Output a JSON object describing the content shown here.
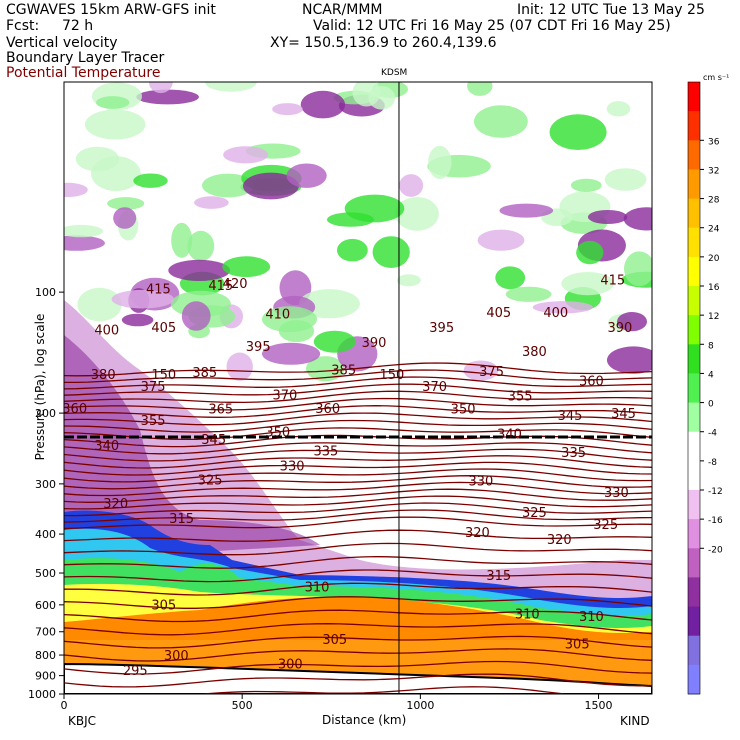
{
  "header": {
    "model": "CGWAVES 15km ARW-GFS init",
    "center": "NCAR/MMM",
    "init": "Init: 12 UTC Tue 13 May 25",
    "fcst_label": "Fcst:",
    "fcst_value": "72 h",
    "valid": "Valid: 12 UTC Fri 16 May 25 (07 CDT Fri 16 May 25)",
    "field1": "Vertical velocity",
    "field2": "Boundary Layer Tracer",
    "field3": "Potential Temperature",
    "xy": "XY= 150.5,136.9 to 260.4,139.6",
    "station_top": "KDSM",
    "station_left": "KBJC",
    "station_right": "KIND"
  },
  "chart_data": {
    "type": "heatmap",
    "xlabel": "Distance (km)",
    "ylabel": "Pressure (hPa), log scale",
    "x_ticks": [
      0,
      500,
      1000,
      1500
    ],
    "xlim": [
      0,
      1650
    ],
    "y_ticks": [
      100,
      200,
      300,
      400,
      500,
      600,
      700,
      800,
      900,
      1000
    ],
    "ylim": [
      1000,
      30
    ],
    "y_scale": "log",
    "station_marker_x": 940,
    "colorbar": {
      "units": "cm s⁻¹",
      "ticks": [
        36,
        32,
        28,
        24,
        20,
        16,
        12,
        8,
        4,
        0,
        -4,
        -8,
        -12,
        -16,
        -20
      ],
      "colors": [
        "#ff0000",
        "#ff3000",
        "#ff6a00",
        "#ff9a00",
        "#ffc000",
        "#ffe000",
        "#ffff00",
        "#c8ff00",
        "#80ff00",
        "#30e020",
        "#50f050",
        "#a0ffa0",
        "#ffffff",
        "#ffffff",
        "#f0c0f0",
        "#e090e0",
        "#c060c0",
        "#9030a0",
        "#7020a0",
        "#8070e0",
        "#8080ff"
      ]
    },
    "theta_labels": [
      {
        "x": 265,
        "p": 98,
        "t": "415"
      },
      {
        "x": 440,
        "p": 96,
        "t": "415"
      },
      {
        "x": 480,
        "p": 95,
        "t": "420"
      },
      {
        "x": 1540,
        "p": 93,
        "t": "415"
      },
      {
        "x": 120,
        "p": 124,
        "t": "400"
      },
      {
        "x": 280,
        "p": 122,
        "t": "405"
      },
      {
        "x": 600,
        "p": 113,
        "t": "410"
      },
      {
        "x": 1220,
        "p": 112,
        "t": "405"
      },
      {
        "x": 1380,
        "p": 112,
        "t": "400"
      },
      {
        "x": 1560,
        "p": 122,
        "t": "390"
      },
      {
        "x": 545,
        "p": 136,
        "t": "395"
      },
      {
        "x": 870,
        "p": 133,
        "t": "390"
      },
      {
        "x": 1060,
        "p": 122,
        "t": "395"
      },
      {
        "x": 1320,
        "p": 140,
        "t": "380"
      },
      {
        "x": 110,
        "p": 160,
        "t": "380"
      },
      {
        "x": 280,
        "p": 160,
        "t": "150"
      },
      {
        "x": 395,
        "p": 158,
        "t": "385"
      },
      {
        "x": 920,
        "p": 160,
        "t": "150"
      },
      {
        "x": 785,
        "p": 156,
        "t": "385"
      },
      {
        "x": 1200,
        "p": 157,
        "t": "375"
      },
      {
        "x": 1480,
        "p": 166,
        "t": "360"
      },
      {
        "x": 250,
        "p": 171,
        "t": "375"
      },
      {
        "x": 1040,
        "p": 171,
        "t": "370"
      },
      {
        "x": 620,
        "p": 180,
        "t": "370"
      },
      {
        "x": 1280,
        "p": 181,
        "t": "355"
      },
      {
        "x": 30,
        "p": 194,
        "t": "360"
      },
      {
        "x": 440,
        "p": 195,
        "t": "365"
      },
      {
        "x": 740,
        "p": 194,
        "t": "360"
      },
      {
        "x": 1120,
        "p": 195,
        "t": "350"
      },
      {
        "x": 1420,
        "p": 202,
        "t": "345"
      },
      {
        "x": 1570,
        "p": 200,
        "t": "345"
      },
      {
        "x": 250,
        "p": 208,
        "t": "355"
      },
      {
        "x": 600,
        "p": 222,
        "t": "350"
      },
      {
        "x": 1250,
        "p": 225,
        "t": "340"
      },
      {
        "x": 420,
        "p": 232,
        "t": "345"
      },
      {
        "x": 120,
        "p": 240,
        "t": "340"
      },
      {
        "x": 735,
        "p": 248,
        "t": "335"
      },
      {
        "x": 1430,
        "p": 250,
        "t": "335"
      },
      {
        "x": 640,
        "p": 270,
        "t": "330"
      },
      {
        "x": 410,
        "p": 293,
        "t": "325"
      },
      {
        "x": 1170,
        "p": 294,
        "t": "330"
      },
      {
        "x": 1550,
        "p": 314,
        "t": "330"
      },
      {
        "x": 145,
        "p": 335,
        "t": "320"
      },
      {
        "x": 330,
        "p": 365,
        "t": "315"
      },
      {
        "x": 1320,
        "p": 352,
        "t": "325"
      },
      {
        "x": 1520,
        "p": 378,
        "t": "325"
      },
      {
        "x": 1160,
        "p": 395,
        "t": "320"
      },
      {
        "x": 1390,
        "p": 412,
        "t": "320"
      },
      {
        "x": 1220,
        "p": 505,
        "t": "315"
      },
      {
        "x": 710,
        "p": 540,
        "t": "310"
      },
      {
        "x": 280,
        "p": 598,
        "t": "305"
      },
      {
        "x": 1300,
        "p": 630,
        "t": "310"
      },
      {
        "x": 1480,
        "p": 640,
        "t": "310"
      },
      {
        "x": 760,
        "p": 730,
        "t": "305"
      },
      {
        "x": 1440,
        "p": 748,
        "t": "305"
      },
      {
        "x": 315,
        "p": 800,
        "t": "300"
      },
      {
        "x": 635,
        "p": 840,
        "t": "300"
      },
      {
        "x": 200,
        "p": 872,
        "t": "295"
      }
    ]
  }
}
